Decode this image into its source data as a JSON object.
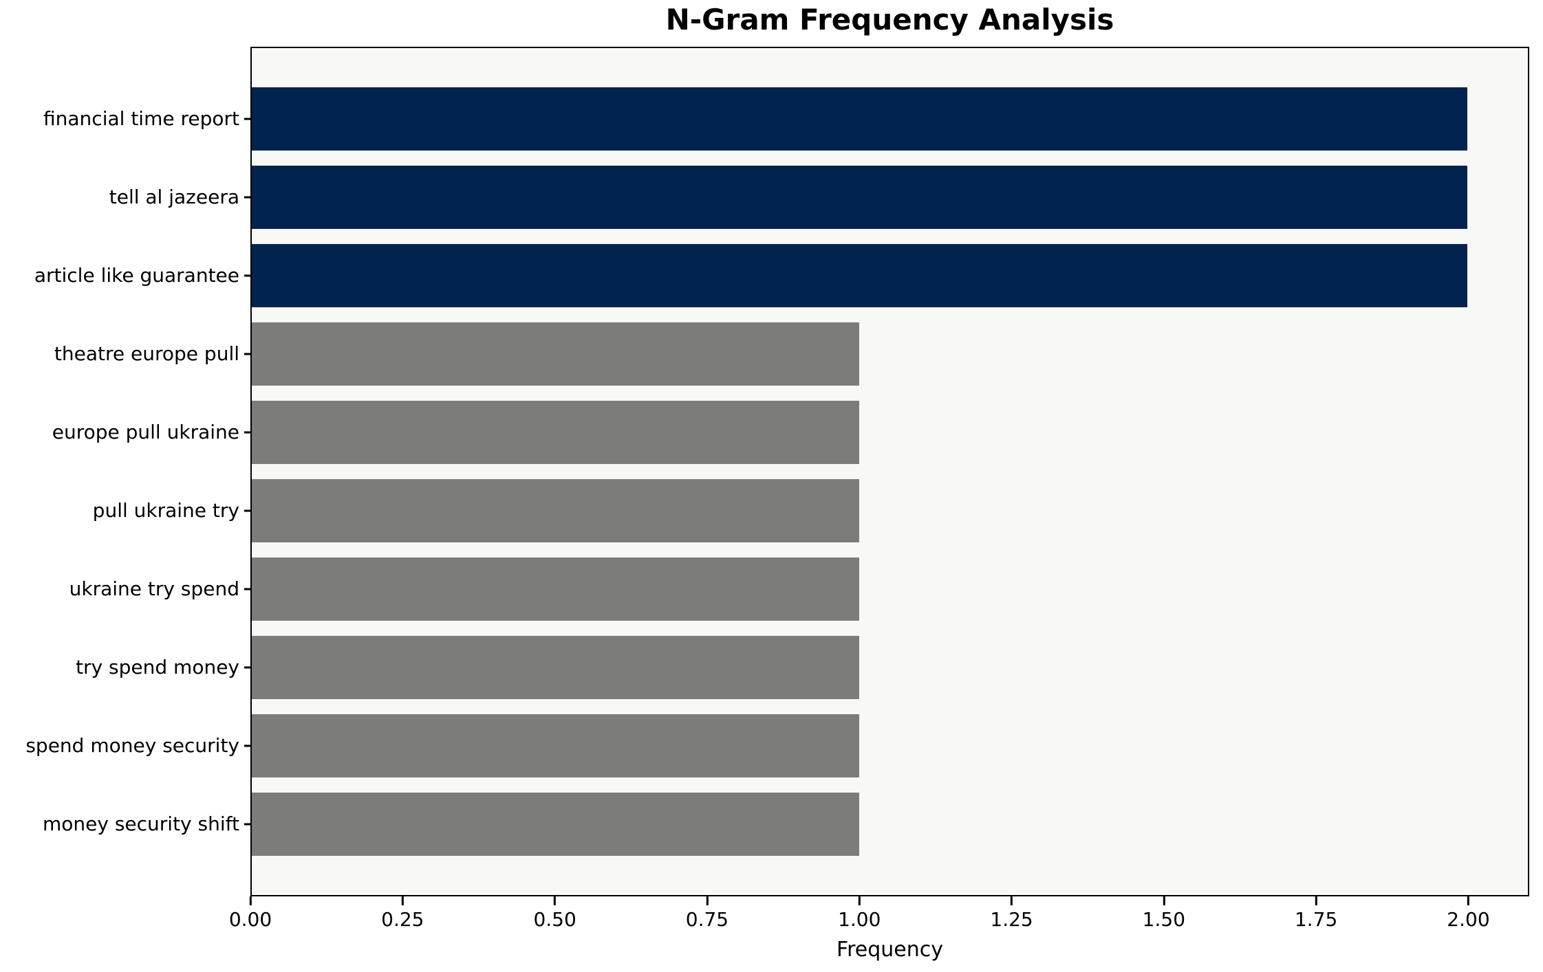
{
  "chart_data": {
    "type": "bar",
    "orientation": "horizontal",
    "title": "N-Gram Frequency Analysis",
    "xlabel": "Frequency",
    "ylabel": "",
    "categories": [
      "financial time report",
      "tell al jazeera",
      "article like guarantee",
      "theatre europe pull",
      "europe pull ukraine",
      "pull ukraine try",
      "ukraine try spend",
      "try spend money",
      "spend money security",
      "money security shift"
    ],
    "values": [
      2,
      2,
      2,
      1,
      1,
      1,
      1,
      1,
      1,
      1
    ],
    "bar_colors": [
      "#02234d",
      "#02234d",
      "#02234d",
      "#7c7c79",
      "#7c7c79",
      "#7c7c79",
      "#7c7c79",
      "#7c7c79",
      "#7c7c79",
      "#7c7c79"
    ],
    "xticks": [
      0,
      0.25,
      0.5,
      0.75,
      1.0,
      1.25,
      1.5,
      1.75,
      2.0
    ],
    "xtick_labels": [
      "0.00",
      "0.25",
      "0.50",
      "0.75",
      "1.00",
      "1.25",
      "1.50",
      "1.75",
      "2.00"
    ],
    "xlim": [
      0,
      2.1
    ],
    "grid": false,
    "legend": null,
    "colors": {
      "highlight": "#02234d",
      "base": "#7c7c79",
      "plot_background": "#f8f8f7",
      "figure_background": "#ffffff",
      "spine": "#000000",
      "text": "#000000"
    }
  }
}
